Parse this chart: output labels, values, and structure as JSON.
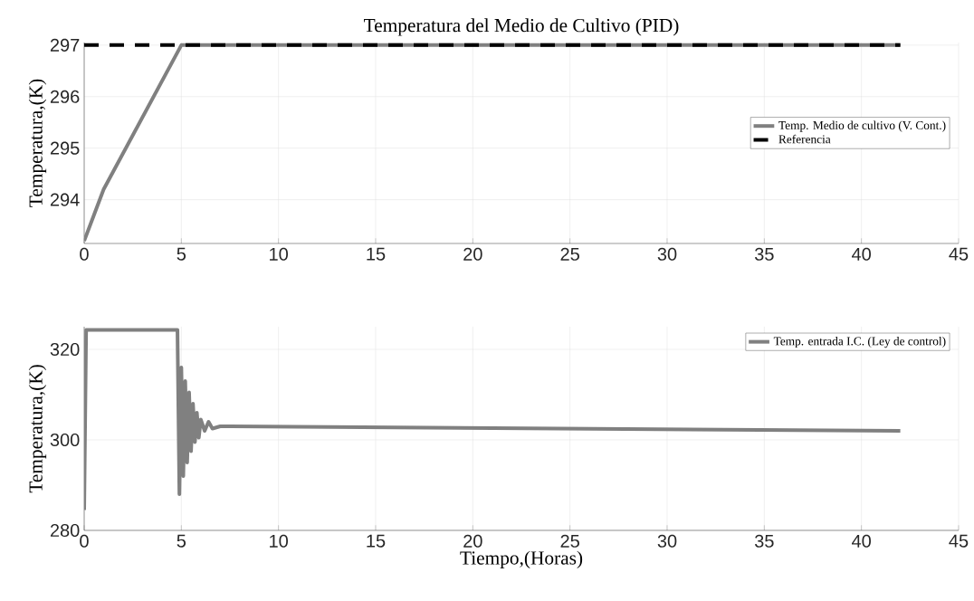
{
  "chart_data": [
    {
      "type": "line",
      "title": "Temperatura del Medio de Cultivo (PID)",
      "ylabel": "Temperatura,(K)",
      "xlim": [
        0,
        45
      ],
      "ylim": [
        293.15,
        297.05
      ],
      "xticks": [
        0,
        5,
        10,
        15,
        20,
        25,
        30,
        35,
        40,
        45
      ],
      "yticks": [
        294,
        295,
        296,
        297
      ],
      "grid": true,
      "legend": "right",
      "series": [
        {
          "name": "Temp. Medio de cultivo (V. Cont.)",
          "color": "#808080",
          "line_style": "solid",
          "x": [
            0,
            1,
            5,
            42
          ],
          "values": [
            293.2,
            294.2,
            297,
            297
          ]
        },
        {
          "name": "Referencia",
          "color": "#000000",
          "line_style": "dashed",
          "x": [
            0,
            42
          ],
          "values": [
            297,
            297
          ]
        }
      ]
    },
    {
      "type": "line",
      "xlabel": "Tiempo,(Horas)",
      "ylabel": "Temperatura,(K)",
      "xlim": [
        0,
        45
      ],
      "ylim": [
        280,
        325
      ],
      "xticks": [
        0,
        5,
        10,
        15,
        20,
        25,
        30,
        35,
        40,
        45
      ],
      "yticks": [
        280,
        300,
        320
      ],
      "grid": true,
      "legend": "top right",
      "series": [
        {
          "name": "Temp. entrada I.C. (Ley de control)",
          "color": "#808080",
          "line_style": "solid",
          "x": [
            0,
            0.1,
            4.8,
            4.9,
            5.0,
            5.1,
            5.2,
            5.3,
            5.4,
            5.5,
            5.6,
            5.7,
            5.8,
            5.9,
            6.0,
            6.2,
            6.4,
            6.6,
            7.0,
            42
          ],
          "values": [
            284.5,
            324.3,
            324.3,
            288,
            316,
            292,
            313,
            295,
            310.5,
            297.5,
            308,
            299.5,
            306,
            300.5,
            304.5,
            302,
            304,
            302.5,
            303,
            302
          ]
        }
      ]
    }
  ]
}
